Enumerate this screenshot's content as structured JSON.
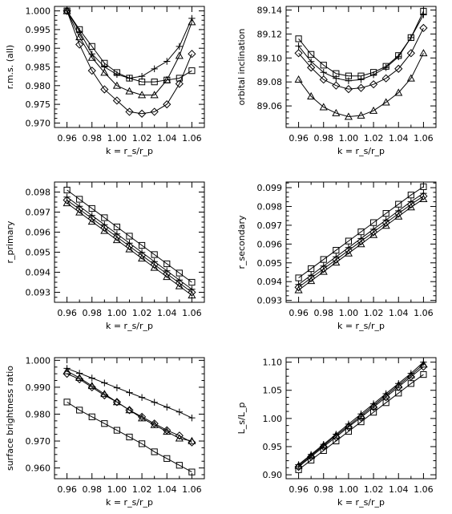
{
  "chart_data": [
    {
      "type": "line",
      "x": [
        0.96,
        0.97,
        0.98,
        0.99,
        1.0,
        1.01,
        1.02,
        1.03,
        1.04,
        1.05,
        1.06
      ],
      "xlabel": "k = r_s/r_p",
      "ylabel": "r.m.s. (all)",
      "xlim": [
        0.95,
        1.07
      ],
      "ylim": [
        0.9688,
        1.0012
      ],
      "xticks": [
        0.96,
        0.98,
        1.0,
        1.02,
        1.04,
        1.06
      ],
      "xtick_labels": [
        "0.96",
        "0.98",
        "1.00",
        "1.02",
        "1.04",
        "1.06"
      ],
      "yticks": [
        0.97,
        0.975,
        0.98,
        0.985,
        0.99,
        0.995,
        1.0
      ],
      "ytick_labels": [
        "0.970",
        "0.975",
        "0.980",
        "0.985",
        "0.990",
        "0.995",
        "1.000"
      ],
      "series": [
        {
          "marker": "plus",
          "values": [
            1.0,
            0.9945,
            0.9885,
            0.985,
            0.983,
            0.982,
            0.9825,
            0.9845,
            0.9865,
            0.9905,
            0.998
          ]
        },
        {
          "marker": "square",
          "values": [
            1.0,
            0.995,
            0.9905,
            0.986,
            0.9835,
            0.982,
            0.981,
            0.981,
            0.9815,
            0.982,
            0.984
          ]
        },
        {
          "marker": "diamond",
          "values": [
            1.0,
            0.991,
            0.984,
            0.979,
            0.976,
            0.973,
            0.9725,
            0.973,
            0.975,
            0.9805,
            0.9885
          ]
        },
        {
          "marker": "triangle",
          "values": [
            1.0,
            0.993,
            0.9875,
            0.9835,
            0.98,
            0.9785,
            0.9775,
            0.9775,
            0.9815,
            0.988,
            0.997
          ]
        }
      ]
    },
    {
      "type": "line",
      "x": [
        0.96,
        0.97,
        0.98,
        0.99,
        1.0,
        1.01,
        1.02,
        1.03,
        1.04,
        1.05,
        1.06
      ],
      "xlabel": "k = r_s/r_p",
      "ylabel": "orbital inclination",
      "xlim": [
        0.95,
        1.07
      ],
      "ylim": [
        89.042,
        89.143
      ],
      "xticks": [
        0.96,
        0.98,
        1.0,
        1.02,
        1.04,
        1.06
      ],
      "xtick_labels": [
        "0.96",
        "0.98",
        "1.00",
        "1.02",
        "1.04",
        "1.06"
      ],
      "yticks": [
        89.06,
        89.08,
        89.1,
        89.12,
        89.14
      ],
      "ytick_labels": [
        "89.06",
        "89.08",
        "89.10",
        "89.12",
        "89.14"
      ],
      "series": [
        {
          "marker": "square",
          "values": [
            89.116,
            89.103,
            89.094,
            89.087,
            89.085,
            89.085,
            89.088,
            89.093,
            89.102,
            89.117,
            89.139
          ]
        },
        {
          "marker": "plus",
          "values": [
            89.11,
            89.097,
            89.088,
            89.083,
            89.081,
            89.082,
            89.086,
            89.092,
            89.101,
            89.117,
            89.136
          ]
        },
        {
          "marker": "diamond",
          "values": [
            89.104,
            89.092,
            89.082,
            89.077,
            89.074,
            89.075,
            89.078,
            89.083,
            89.091,
            89.104,
            89.125
          ]
        },
        {
          "marker": "triangle",
          "values": [
            89.082,
            89.068,
            89.059,
            89.054,
            89.051,
            89.052,
            89.056,
            89.063,
            89.071,
            89.083,
            89.104
          ]
        }
      ]
    },
    {
      "type": "line",
      "x": [
        0.96,
        0.97,
        0.98,
        0.99,
        1.0,
        1.01,
        1.02,
        1.03,
        1.04,
        1.05,
        1.06
      ],
      "xlabel": "k = r_s/r_p",
      "ylabel": "r_primary",
      "xlim": [
        0.95,
        1.07
      ],
      "ylim": [
        0.0925,
        0.0985
      ],
      "xticks": [
        0.96,
        0.98,
        1.0,
        1.02,
        1.04,
        1.06
      ],
      "xtick_labels": [
        "0.96",
        "0.98",
        "1.00",
        "1.02",
        "1.04",
        "1.06"
      ],
      "yticks": [
        0.093,
        0.094,
        0.095,
        0.096,
        0.097,
        0.098
      ],
      "ytick_labels": [
        "0.093",
        "0.094",
        "0.095",
        "0.096",
        "0.097",
        "0.098"
      ],
      "series": [
        {
          "marker": "square",
          "values": [
            0.0981,
            0.09764,
            0.09718,
            0.09672,
            0.09626,
            0.0958,
            0.09534,
            0.09488,
            0.09442,
            0.09396,
            0.0935
          ]
        },
        {
          "marker": "plus",
          "values": [
            0.09775,
            0.09729,
            0.09683,
            0.09637,
            0.09591,
            0.09545,
            0.09499,
            0.09453,
            0.09407,
            0.09361,
            0.09315
          ]
        },
        {
          "marker": "diamond",
          "values": [
            0.0976,
            0.09714,
            0.09668,
            0.09622,
            0.09576,
            0.0953,
            0.09484,
            0.09438,
            0.09392,
            0.09346,
            0.093
          ]
        },
        {
          "marker": "triangle",
          "values": [
            0.09745,
            0.09699,
            0.09653,
            0.09607,
            0.09561,
            0.09515,
            0.09469,
            0.09423,
            0.09377,
            0.09331,
            0.09285
          ]
        }
      ]
    },
    {
      "type": "line",
      "x": [
        0.96,
        0.97,
        0.98,
        0.99,
        1.0,
        1.01,
        1.02,
        1.03,
        1.04,
        1.05,
        1.06
      ],
      "xlabel": "k = r_s/r_p",
      "ylabel": "r_secondary",
      "xlim": [
        0.95,
        1.07
      ],
      "ylim": [
        0.0929,
        0.0993
      ],
      "xticks": [
        0.96,
        0.98,
        1.0,
        1.02,
        1.04,
        1.06
      ],
      "xtick_labels": [
        "0.96",
        "0.98",
        "1.00",
        "1.02",
        "1.04",
        "1.06"
      ],
      "yticks": [
        0.093,
        0.094,
        0.095,
        0.096,
        0.097,
        0.098,
        0.099
      ],
      "ytick_labels": [
        "0.093",
        "0.094",
        "0.095",
        "0.096",
        "0.097",
        "0.098",
        "0.099"
      ],
      "series": [
        {
          "marker": "square",
          "values": [
            0.0942,
            0.09469,
            0.09518,
            0.09567,
            0.09616,
            0.09665,
            0.09714,
            0.09763,
            0.09812,
            0.09861,
            0.09905
          ]
        },
        {
          "marker": "plus",
          "values": [
            0.09385,
            0.09434,
            0.09483,
            0.09532,
            0.09581,
            0.0963,
            0.09679,
            0.09728,
            0.09777,
            0.09826,
            0.0987
          ]
        },
        {
          "marker": "diamond",
          "values": [
            0.0937,
            0.09419,
            0.09468,
            0.09517,
            0.09566,
            0.09615,
            0.09664,
            0.09713,
            0.09762,
            0.09811,
            0.09855
          ]
        },
        {
          "marker": "triangle",
          "values": [
            0.09355,
            0.09404,
            0.09453,
            0.09502,
            0.09551,
            0.096,
            0.09649,
            0.09698,
            0.09747,
            0.09796,
            0.0984
          ]
        }
      ]
    },
    {
      "type": "line",
      "x": [
        0.96,
        0.97,
        0.98,
        0.99,
        1.0,
        1.01,
        1.02,
        1.03,
        1.04,
        1.05,
        1.06
      ],
      "xlabel": "k = r_s/r_p",
      "ylabel": "surface brightness ratio",
      "xlim": [
        0.95,
        1.07
      ],
      "ylim": [
        0.956,
        1.001
      ],
      "xticks": [
        0.96,
        0.98,
        1.0,
        1.02,
        1.04,
        1.06
      ],
      "xtick_labels": [
        "0.96",
        "0.98",
        "1.00",
        "1.02",
        "1.04",
        "1.06"
      ],
      "yticks": [
        0.96,
        0.97,
        0.98,
        0.99,
        1.0
      ],
      "ytick_labels": [
        "0.960",
        "0.970",
        "0.980",
        "0.990",
        "1.000"
      ],
      "series": [
        {
          "marker": "plus",
          "values": [
            0.997,
            0.9952,
            0.9934,
            0.9916,
            0.9898,
            0.988,
            0.9862,
            0.9844,
            0.9826,
            0.9808,
            0.9786
          ]
        },
        {
          "marker": "triangle",
          "values": [
            0.996,
            0.9935,
            0.9905,
            0.9875,
            0.9845,
            0.9815,
            0.9785,
            0.976,
            0.9735,
            0.971,
            0.97
          ]
        },
        {
          "marker": "diamond",
          "values": [
            0.995,
            0.993,
            0.99,
            0.987,
            0.9845,
            0.9815,
            0.979,
            0.9765,
            0.974,
            0.972,
            0.9695
          ]
        },
        {
          "marker": "square",
          "values": [
            0.9845,
            0.9815,
            0.979,
            0.9765,
            0.974,
            0.9715,
            0.969,
            0.966,
            0.9635,
            0.961,
            0.9585
          ]
        }
      ]
    },
    {
      "type": "line",
      "x": [
        0.96,
        0.97,
        0.98,
        0.99,
        1.0,
        1.01,
        1.02,
        1.03,
        1.04,
        1.05,
        1.06
      ],
      "xlabel": "k = r_s/r_p",
      "ylabel": "L_s/L_p",
      "xlim": [
        0.95,
        1.07
      ],
      "ylim": [
        0.893,
        1.108
      ],
      "xticks": [
        0.96,
        0.98,
        1.0,
        1.02,
        1.04,
        1.06
      ],
      "xtick_labels": [
        "0.96",
        "0.98",
        "1.00",
        "1.02",
        "1.04",
        "1.06"
      ],
      "yticks": [
        0.9,
        0.95,
        1.0,
        1.05,
        1.1
      ],
      "ytick_labels": [
        "0.90",
        "0.95",
        "1.00",
        "1.05",
        "1.10"
      ],
      "series": [
        {
          "marker": "plus",
          "values": [
            0.918,
            0.936,
            0.954,
            0.972,
            0.99,
            1.008,
            1.026,
            1.044,
            1.062,
            1.08,
            1.1
          ]
        },
        {
          "marker": "triangle",
          "values": [
            0.916,
            0.934,
            0.952,
            0.97,
            0.987,
            1.005,
            1.023,
            1.041,
            1.059,
            1.077,
            1.096
          ]
        },
        {
          "marker": "diamond",
          "values": [
            0.914,
            0.932,
            0.95,
            0.967,
            0.985,
            1.002,
            1.02,
            1.038,
            1.056,
            1.074,
            1.092
          ]
        },
        {
          "marker": "square",
          "values": [
            0.909,
            0.926,
            0.943,
            0.96,
            0.977,
            0.994,
            1.011,
            1.028,
            1.045,
            1.062,
            1.078
          ]
        }
      ]
    }
  ]
}
